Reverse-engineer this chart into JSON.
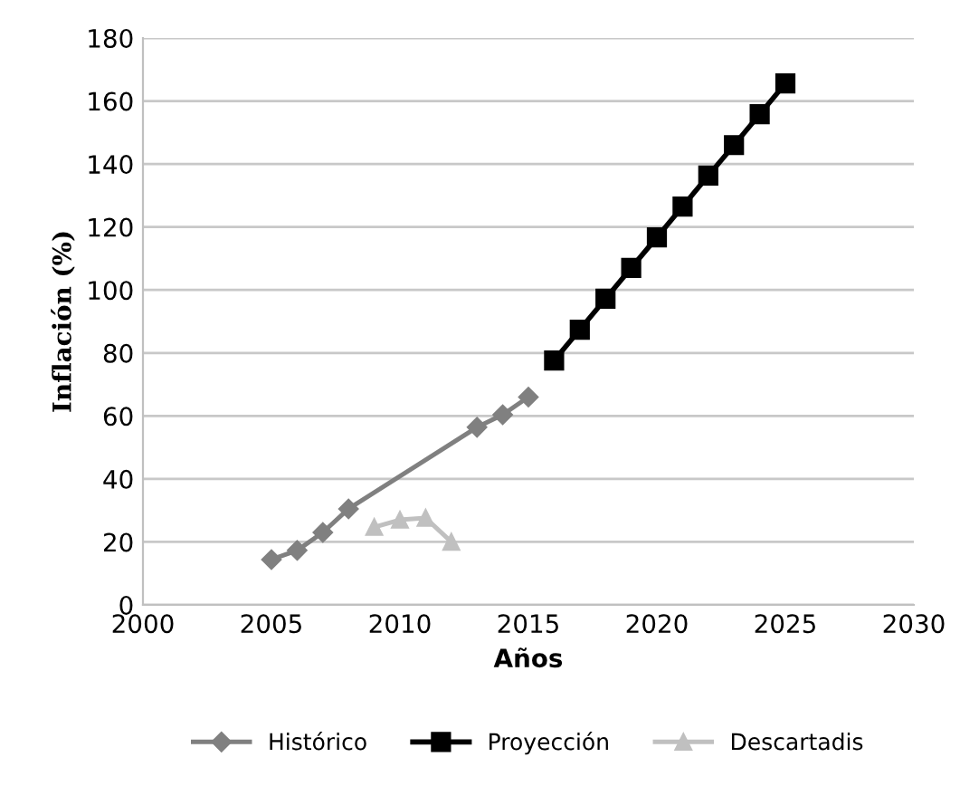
{
  "chart_data": {
    "type": "line",
    "xlabel": "Años",
    "ylabel": "Inflación (%)",
    "xlim": [
      2000,
      2030
    ],
    "xticks": [
      2000,
      2005,
      2010,
      2015,
      2020,
      2025,
      2030
    ],
    "ylim": [
      0,
      180
    ],
    "yticks": [
      0,
      20,
      40,
      60,
      80,
      100,
      120,
      140,
      160,
      180
    ],
    "grid": "y",
    "legend": "bottom",
    "series": [
      {
        "name": "Histórico",
        "color": "#808080",
        "marker": "diamond",
        "x": [
          2005,
          2006,
          2007,
          2008,
          2013,
          2014,
          2015
        ],
        "values": [
          14.4,
          17.3,
          23,
          30.5,
          56.4,
          60.4,
          66
        ]
      },
      {
        "name": "Proyección",
        "color": "#000000",
        "marker": "square",
        "x": [
          2016,
          2017,
          2018,
          2019,
          2020,
          2021,
          2022,
          2023,
          2024,
          2025
        ],
        "values": [
          77.6,
          87.4,
          97.2,
          107,
          116.7,
          126.5,
          136.3,
          146,
          155.8,
          165.6
        ]
      },
      {
        "name": "Descartadis",
        "color": "#c0c0c0",
        "marker": "triangle",
        "x": [
          2009,
          2010,
          2011,
          2012
        ],
        "values": [
          24.7,
          27,
          27.6,
          20
        ]
      }
    ]
  }
}
